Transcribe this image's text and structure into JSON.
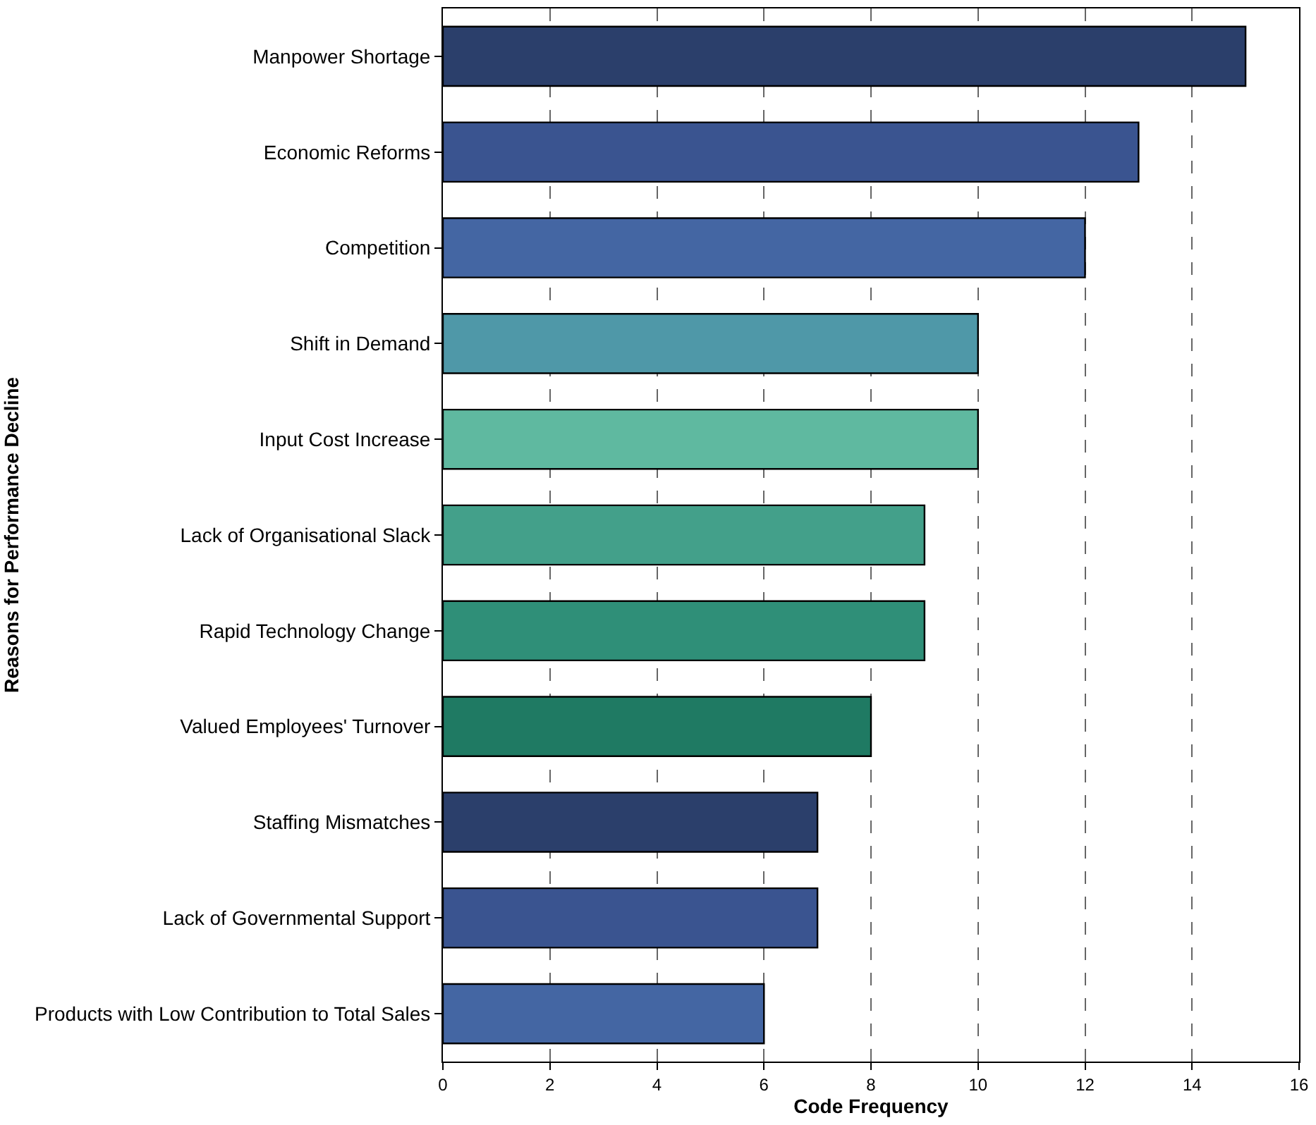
{
  "chart_data": {
    "type": "bar",
    "orientation": "horizontal",
    "xlabel": "Code Frequency",
    "ylabel": "Reasons for Performance Decline",
    "categories": [
      "Manpower Shortage",
      "Economic Reforms",
      "Competition",
      "Shift in Demand",
      "Input Cost Increase",
      "Lack of Organisational Slack",
      "Rapid Technology Change",
      "Valued Employees' Turnover",
      "Staffing Mismatches",
      "Lack of Governmental Support",
      "Products with Low Contribution to Total Sales"
    ],
    "values": [
      15,
      13,
      12,
      10,
      10,
      9,
      9,
      8,
      7,
      7,
      6
    ],
    "colors": [
      "#2b3f6b",
      "#3a5490",
      "#4466a3",
      "#4f98a8",
      "#5fb9a0",
      "#43a08a",
      "#2f8f78",
      "#1f7a63",
      "#2b3f6b",
      "#3a5490",
      "#4466a3"
    ],
    "xlim": [
      0,
      16
    ],
    "xticks": [
      0,
      2,
      4,
      6,
      8,
      10,
      12,
      14,
      16
    ],
    "grid": "x"
  }
}
